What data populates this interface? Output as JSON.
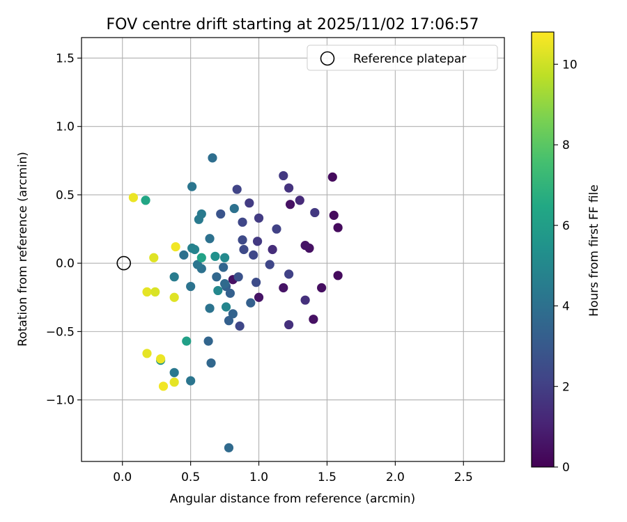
{
  "chart_data": {
    "type": "scatter",
    "title": "FOV centre drift starting at 2025/11/02 17:06:57",
    "xlabel": "Angular distance from reference (arcmin)",
    "ylabel": "Rotation from reference (arcmin)",
    "xlim": [
      -0.3,
      2.8
    ],
    "ylim": [
      -1.45,
      1.65
    ],
    "xticks": [
      0.0,
      0.5,
      1.0,
      1.5,
      2.0,
      2.5
    ],
    "xtick_labels": [
      "0.0",
      "0.5",
      "1.0",
      "1.5",
      "2.0",
      "2.5"
    ],
    "yticks": [
      -1.0,
      -0.5,
      0.0,
      0.5,
      1.0,
      1.5
    ],
    "ytick_labels": [
      "−1.0",
      "−0.5",
      "0.0",
      "0.5",
      "1.0",
      "1.5"
    ],
    "grid": true,
    "legend": {
      "placement": "upper-right",
      "entries": [
        "Reference platepar"
      ]
    },
    "reference_point": {
      "x": 0.0,
      "y": 0.0
    },
    "colorbar": {
      "label": "Hours from first FF file",
      "colormap": "viridis",
      "range": [
        0,
        10.8
      ],
      "ticks": [
        0,
        2,
        4,
        6,
        8,
        10
      ],
      "tick_labels": [
        "0",
        "2",
        "4",
        "6",
        "8",
        "10"
      ]
    },
    "points": [
      {
        "x": 1.54,
        "y": 0.63,
        "c": 0.3
      },
      {
        "x": 1.55,
        "y": 0.35,
        "c": 0.3
      },
      {
        "x": 1.58,
        "y": 0.26,
        "c": 0.3
      },
      {
        "x": 1.58,
        "y": -0.09,
        "c": 0.3
      },
      {
        "x": 1.46,
        "y": -0.18,
        "c": 0.4
      },
      {
        "x": 1.4,
        "y": -0.41,
        "c": 0.5
      },
      {
        "x": 1.37,
        "y": 0.11,
        "c": 0.5
      },
      {
        "x": 1.34,
        "y": 0.13,
        "c": 0.6
      },
      {
        "x": 1.23,
        "y": 0.43,
        "c": 0.5
      },
      {
        "x": 1.18,
        "y": -0.18,
        "c": 0.6
      },
      {
        "x": 1.0,
        "y": -0.25,
        "c": 0.6
      },
      {
        "x": 0.81,
        "y": -0.12,
        "c": 0.5
      },
      {
        "x": 1.3,
        "y": 0.46,
        "c": 1.3
      },
      {
        "x": 1.34,
        "y": -0.27,
        "c": 1.5
      },
      {
        "x": 1.22,
        "y": -0.45,
        "c": 1.5
      },
      {
        "x": 1.41,
        "y": 0.37,
        "c": 1.8
      },
      {
        "x": 1.18,
        "y": 0.64,
        "c": 1.8
      },
      {
        "x": 1.22,
        "y": 0.55,
        "c": 1.6
      },
      {
        "x": 1.1,
        "y": 0.1,
        "c": 1.4
      },
      {
        "x": 1.13,
        "y": 0.25,
        "c": 2.1
      },
      {
        "x": 1.22,
        "y": -0.08,
        "c": 2.1
      },
      {
        "x": 1.08,
        "y": -0.01,
        "c": 2.3
      },
      {
        "x": 1.0,
        "y": 0.33,
        "c": 1.9
      },
      {
        "x": 0.99,
        "y": 0.16,
        "c": 1.8
      },
      {
        "x": 0.98,
        "y": -0.14,
        "c": 2.5
      },
      {
        "x": 0.93,
        "y": 0.44,
        "c": 1.9
      },
      {
        "x": 0.96,
        "y": 0.06,
        "c": 2.3
      },
      {
        "x": 0.88,
        "y": 0.3,
        "c": 2.3
      },
      {
        "x": 0.89,
        "y": 0.1,
        "c": 2.4
      },
      {
        "x": 0.88,
        "y": 0.17,
        "c": 2.4
      },
      {
        "x": 0.84,
        "y": 0.54,
        "c": 2.2
      },
      {
        "x": 0.86,
        "y": -0.46,
        "c": 2.3
      },
      {
        "x": 0.85,
        "y": -0.1,
        "c": 2.7
      },
      {
        "x": 0.72,
        "y": 0.36,
        "c": 2.8
      },
      {
        "x": 0.94,
        "y": -0.29,
        "c": 3.3
      },
      {
        "x": 0.81,
        "y": -0.37,
        "c": 3.4
      },
      {
        "x": 0.78,
        "y": -0.42,
        "c": 3.3
      },
      {
        "x": 0.79,
        "y": -0.22,
        "c": 3.3
      },
      {
        "x": 0.76,
        "y": -0.17,
        "c": 3.3
      },
      {
        "x": 0.75,
        "y": -0.15,
        "c": 3.7
      },
      {
        "x": 0.74,
        "y": -0.03,
        "c": 3.5
      },
      {
        "x": 0.69,
        "y": -0.1,
        "c": 3.6
      },
      {
        "x": 0.82,
        "y": 0.4,
        "c": 4.0
      },
      {
        "x": 0.66,
        "y": 0.77,
        "c": 3.9
      },
      {
        "x": 0.63,
        "y": -0.57,
        "c": 3.5
      },
      {
        "x": 0.65,
        "y": -0.73,
        "c": 3.6
      },
      {
        "x": 0.78,
        "y": -1.35,
        "c": 3.7
      },
      {
        "x": 0.64,
        "y": 0.18,
        "c": 4.0
      },
      {
        "x": 0.64,
        "y": -0.33,
        "c": 4.1
      },
      {
        "x": 0.58,
        "y": -0.04,
        "c": 4.0
      },
      {
        "x": 0.56,
        "y": 0.32,
        "c": 4.4
      },
      {
        "x": 0.58,
        "y": 0.36,
        "c": 4.4
      },
      {
        "x": 0.55,
        "y": -0.01,
        "c": 4.2
      },
      {
        "x": 0.51,
        "y": 0.56,
        "c": 4.2
      },
      {
        "x": 0.5,
        "y": -0.17,
        "c": 4.1
      },
      {
        "x": 0.5,
        "y": -0.86,
        "c": 4.2
      },
      {
        "x": 0.45,
        "y": 0.06,
        "c": 4.0
      },
      {
        "x": 0.38,
        "y": -0.8,
        "c": 4.3
      },
      {
        "x": 0.38,
        "y": -0.1,
        "c": 4.5
      },
      {
        "x": 0.51,
        "y": 0.11,
        "c": 4.7
      },
      {
        "x": 0.53,
        "y": 0.1,
        "c": 4.8
      },
      {
        "x": 0.7,
        "y": -0.2,
        "c": 5.0
      },
      {
        "x": 0.76,
        "y": -0.32,
        "c": 4.9
      },
      {
        "x": 0.75,
        "y": 0.04,
        "c": 5.1
      },
      {
        "x": 0.68,
        "y": 0.05,
        "c": 5.4
      },
      {
        "x": 0.58,
        "y": 0.04,
        "c": 6.2
      },
      {
        "x": 0.28,
        "y": -0.71,
        "c": 5.5
      },
      {
        "x": 0.47,
        "y": -0.57,
        "c": 6.1
      },
      {
        "x": 0.17,
        "y": 0.46,
        "c": 6.4
      },
      {
        "x": 0.08,
        "y": 0.48,
        "c": 10.5
      },
      {
        "x": 0.23,
        "y": 0.04,
        "c": 10.3
      },
      {
        "x": 0.18,
        "y": -0.21,
        "c": 10.4
      },
      {
        "x": 0.24,
        "y": -0.21,
        "c": 10.2
      },
      {
        "x": 0.39,
        "y": 0.12,
        "c": 10.6
      },
      {
        "x": 0.38,
        "y": -0.25,
        "c": 10.3
      },
      {
        "x": 0.18,
        "y": -0.66,
        "c": 10.4
      },
      {
        "x": 0.28,
        "y": -0.7,
        "c": 10.5
      },
      {
        "x": 0.3,
        "y": -0.9,
        "c": 10.6
      },
      {
        "x": 0.38,
        "y": -0.87,
        "c": 10.4
      }
    ]
  }
}
